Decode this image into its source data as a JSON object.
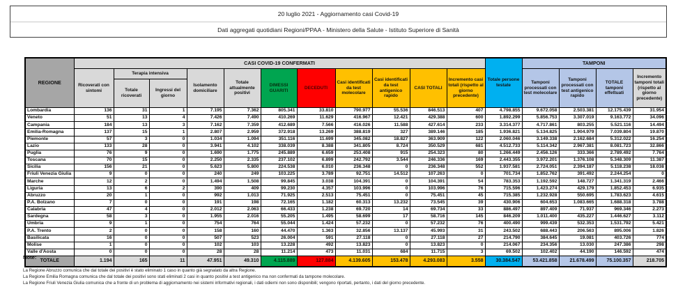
{
  "title": {
    "line1": "20 luglio 2021 - Aggiornamento casi Covid-19",
    "line2": "Dati aggregati quotidiani Regioni/PPAA - Ministero della Salute - Istituto Superiore di Sanità"
  },
  "colors": {
    "green": "#00A550",
    "red": "#FF0000",
    "yellow": "#FFC000",
    "cyan": "#00B0F0",
    "light_blue": "#B4C6E7",
    "dark_gray": "#A6A6A6",
    "light_gray": "#D9D9D9"
  },
  "table": {
    "group_headers": {
      "confirmed": "CASI COVID-19 CONFERMATI",
      "tamponi": "TAMPONI"
    },
    "headers": {
      "regione": "REGIONE",
      "ricoverati": "Ricoverati con sintomi",
      "terapia_intensiva": "Terapia intensiva",
      "totale_ricoverati": "Totale ricoverati",
      "ingressi": "Ingressi del giorno",
      "isolamento": "Isolamento domiciliare",
      "attualmente_positivi": "Totale attualmente positivi",
      "dimessi": "DIMESSI GUARITI",
      "deceduti": "DECEDUTI",
      "casi_molecolare": "Casi identificati da test molecolare",
      "casi_antigenico": "Casi identificati da test antigenico rapido",
      "casi_totali": "CASI TOTALI",
      "incremento_casi": "Incremento casi totali (rispetto al giorno precedente)",
      "persone_testate": "Totale persone testate",
      "tamponi_molecolare": "Tamponi processati con test molecolare",
      "tamponi_antigenico": "Tamponi processati con test antigenico rapido",
      "tamponi_totale": "TOTALE tamponi effettuati",
      "incremento_tamponi": "Incremento tamponi totali (rispetto al giorno precedente)"
    },
    "rows": [
      {
        "region": "Lombardia",
        "values": [
          "136",
          "31",
          "1",
          "7.195",
          "7.362",
          "805.341",
          "33.810",
          "790.977",
          "55.536",
          "846.513",
          "407",
          "4.798.855",
          "9.672.058",
          "2.503.381",
          "12.175.439",
          "31.954"
        ]
      },
      {
        "region": "Veneto",
        "values": [
          "51",
          "13",
          "4",
          "7.426",
          "7.490",
          "410.269",
          "11.629",
          "416.967",
          "12.421",
          "429.388",
          "600",
          "1.892.299",
          "5.856.753",
          "3.307.019",
          "9.163.772",
          "34.096"
        ]
      },
      {
        "region": "Campania",
        "values": [
          "184",
          "13",
          "3",
          "7.162",
          "7.359",
          "412.689",
          "7.566",
          "416.026",
          "11.588",
          "427.614",
          "233",
          "3.314.377",
          "4.717.861",
          "803.255",
          "5.521.116",
          "14.494"
        ]
      },
      {
        "region": "Emilia-Romagna",
        "values": [
          "137",
          "15",
          "1",
          "2.807",
          "2.959",
          "372.918",
          "13.269",
          "388.819",
          "327",
          "389.146",
          "185",
          "1.936.821",
          "5.134.825",
          "1.904.979",
          "7.039.804",
          "19.870"
        ]
      },
      {
        "region": "Piemonte",
        "values": [
          "57",
          "3",
          "0",
          "1.034",
          "1.094",
          "351.116",
          "11.699",
          "345.082",
          "18.827",
          "363.909",
          "122",
          "2.060.046",
          "3.149.338",
          "2.162.684",
          "5.312.022",
          "16.254"
        ]
      },
      {
        "region": "Lazio",
        "values": [
          "133",
          "28",
          "0",
          "3.941",
          "4.102",
          "338.039",
          "8.388",
          "341.805",
          "8.724",
          "350.529",
          "681",
          "4.512.733",
          "5.114.342",
          "2.967.381",
          "8.081.723",
          "32.866"
        ]
      },
      {
        "region": "Puglia",
        "values": [
          "76",
          "9",
          "0",
          "1.690",
          "1.775",
          "245.889",
          "6.659",
          "253.408",
          "915",
          "254.323",
          "80",
          "1.266.449",
          "2.456.126",
          "333.366",
          "2.789.492",
          "7.764"
        ]
      },
      {
        "region": "Toscana",
        "values": [
          "70",
          "15",
          "0",
          "2.250",
          "2.335",
          "237.102",
          "6.899",
          "242.792",
          "3.544",
          "246.336",
          "169",
          "2.443.355",
          "3.972.201",
          "1.376.108",
          "5.348.309",
          "11.387"
        ]
      },
      {
        "region": "Sicilia",
        "values": [
          "156",
          "21",
          "0",
          "5.623",
          "5.800",
          "224.538",
          "6.010",
          "236.348",
          "0",
          "236.348",
          "552",
          "1.937.581",
          "2.724.051",
          "2.394.187",
          "5.118.238",
          "18.038"
        ]
      },
      {
        "region": "Friuli Venezia Giulia",
        "values": [
          "9",
          "0",
          "0",
          "240",
          "249",
          "103.225",
          "3.789",
          "92.751",
          "14.512",
          "107.263",
          "0",
          "701.734",
          "1.852.762",
          "391.492",
          "2.244.254",
          "0"
        ]
      },
      {
        "region": "Marche",
        "values": [
          "12",
          "2",
          "0",
          "1.494",
          "1.508",
          "99.845",
          "3.038",
          "104.391",
          "0",
          "104.391",
          "54",
          "783.353",
          "1.192.592",
          "148.727",
          "1.341.319",
          "2.466"
        ]
      },
      {
        "region": "Liguria",
        "values": [
          "13",
          "6",
          "2",
          "390",
          "409",
          "99.230",
          "4.357",
          "103.996",
          "0",
          "103.996",
          "76",
          "715.596",
          "1.423.274",
          "429.179",
          "1.852.453",
          "6.935"
        ]
      },
      {
        "region": "Abruzzo",
        "values": [
          "20",
          "1",
          "0",
          "992",
          "1.013",
          "71.925",
          "2.513",
          "75.451",
          "0",
          "75.451",
          "45",
          "715.385",
          "1.232.928",
          "550.695",
          "1.783.623",
          "4.615"
        ]
      },
      {
        "region": "P.A. Bolzano",
        "values": [
          "7",
          "0",
          "0",
          "191",
          "198",
          "72.165",
          "1.182",
          "60.313",
          "13.232",
          "73.545",
          "39",
          "430.906",
          "604.653",
          "1.083.665",
          "1.688.318",
          "3.788"
        ]
      },
      {
        "region": "Calabria",
        "values": [
          "47",
          "4",
          "0",
          "2.012",
          "2.063",
          "66.433",
          "1.238",
          "69.720",
          "14",
          "69.734",
          "33",
          "886.497",
          "897.409",
          "71.937",
          "969.346",
          "2.273"
        ]
      },
      {
        "region": "Sardegna",
        "values": [
          "58",
          "3",
          "0",
          "1.955",
          "2.016",
          "55.205",
          "1.495",
          "58.699",
          "17",
          "58.716",
          "145",
          "846.209",
          "1.011.400",
          "435.227",
          "1.446.627",
          "3.112"
        ]
      },
      {
        "region": "Umbria",
        "values": [
          "9",
          "1",
          "0",
          "754",
          "764",
          "55.044",
          "1.424",
          "57.232",
          "0",
          "57.232",
          "76",
          "400.490",
          "999.439",
          "532.353",
          "1.531.792",
          "5.421"
        ]
      },
      {
        "region": "P.A. Trento",
        "values": [
          "2",
          "0",
          "0",
          "158",
          "160",
          "44.470",
          "1.363",
          "32.856",
          "13.137",
          "45.993",
          "31",
          "243.502",
          "688.443",
          "206.563",
          "895.006",
          "1.826"
        ]
      },
      {
        "region": "Basilicata",
        "values": [
          "16",
          "0",
          "0",
          "507",
          "523",
          "26.004",
          "591",
          "27.118",
          "0",
          "27.118",
          "27",
          "214.790",
          "384.645",
          "19.081",
          "403.726",
          "774"
        ]
      },
      {
        "region": "Molise",
        "values": [
          "1",
          "0",
          "0",
          "102",
          "103",
          "13.228",
          "492",
          "13.823",
          "0",
          "13.823",
          "0",
          "214.067",
          "234.356",
          "13.030",
          "247.386",
          "298"
        ]
      },
      {
        "region": "Valle d'Aosta",
        "values": [
          "0",
          "0",
          "0",
          "28",
          "28",
          "11.214",
          "473",
          "11.031",
          "684",
          "11.715",
          "3",
          "69.502",
          "102.402",
          "44.190",
          "146.592",
          "474"
        ]
      }
    ],
    "total_row": {
      "label": "TOTALE",
      "values": [
        "1.194",
        "165",
        "11",
        "47.951",
        "49.310",
        "4.115.889",
        "127.884",
        "4.139.605",
        "153.478",
        "4.293.083",
        "3.558",
        "30.384.547",
        "53.421.858",
        "21.678.499",
        "75.100.357",
        "218.705"
      ]
    }
  },
  "notes": {
    "heading": "Note:",
    "items": [
      "La Regione Abruzzo comunica che dal totale dei positivi è stato eliminato 1 caso in quanto già segnalato da altra Regione.",
      "La Regione Emilia Romagna comunica che dal totale dei positivi sono stati eliminati 2 casi in quanto positivi a test antigenico ma non confermati da tampone molecolare.",
      "La Regione Friuli Venezia Giulia comunica che a fronte di un problema di aggiornamento nei sistemi informativi regionali, i dati odierni non sono disponibili; vengono riportati, pertanto, i dati del giorno precedente."
    ]
  }
}
